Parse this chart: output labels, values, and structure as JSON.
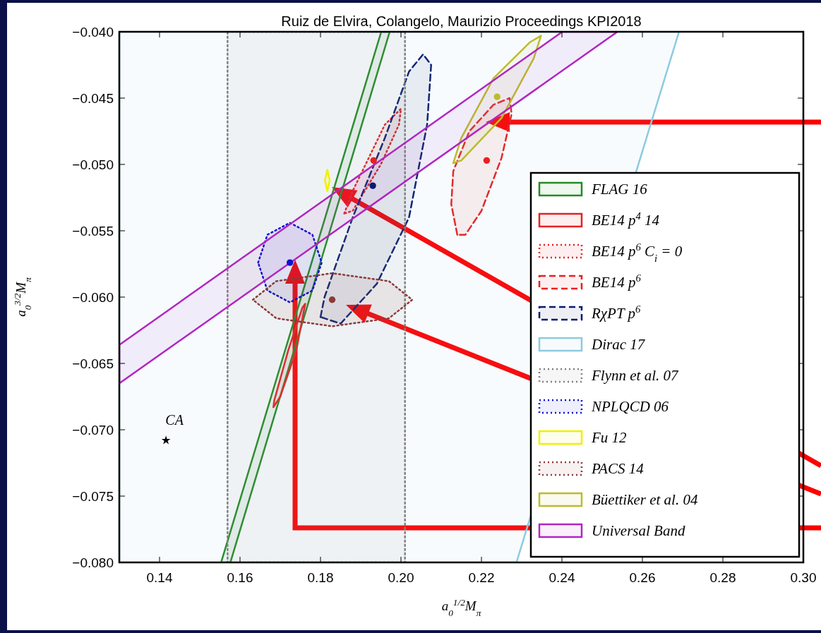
{
  "chart_data": {
    "type": "area",
    "title": "Ruiz de Elvira, Colangelo, Maurizio Proceedings KPI2018",
    "xlabel": "a$_{0}$$^{1/2}$M$_{π}$",
    "ylabel": "a$_{0}$$^{3/2}$M$_{π}$",
    "xlim": [
      0.13,
      0.3
    ],
    "ylim": [
      -0.08,
      -0.04
    ],
    "xticks": [
      0.14,
      0.16,
      0.18,
      {
        "value": 0.2,
        "label": "0.20"
      },
      0.22,
      0.24,
      0.26,
      0.28,
      {
        "value": 0.3,
        "label": "0.30"
      }
    ],
    "yticks": [
      {
        "value": -0.08,
        "label": "−0.080"
      },
      {
        "value": -0.075,
        "label": "−0.075"
      },
      {
        "value": -0.07,
        "label": "−0.070"
      },
      {
        "value": -0.065,
        "label": "−0.065"
      },
      {
        "value": -0.06,
        "label": "−0.060"
      },
      {
        "value": -0.055,
        "label": "−0.055"
      },
      {
        "value": -0.05,
        "label": "−0.050"
      },
      {
        "value": -0.045,
        "label": "−0.045"
      },
      {
        "value": -0.04,
        "label": "−0.040"
      }
    ],
    "legend": "bottom right",
    "marker": "none",
    "annotations": [
      {
        "text": "CA",
        "x": 0.1416,
        "y": -0.0708
      }
    ],
    "series": [
      {
        "name": "FLAG 16",
        "color": "#228b22",
        "line_style": "solid",
        "x": [
          0.1553,
          0.1951,
          0.1972,
          0.1576,
          0.1553
        ],
        "values": [
          -0.08,
          -0.04,
          -0.04,
          -0.08,
          -0.08
        ]
      },
      {
        "name": "BE14 p$^{4}$ 14",
        "color": "#e82020",
        "line_style": "solid",
        "x": [
          0.1683,
          0.17,
          0.174,
          0.1762,
          0.1755,
          0.172,
          0.1685,
          0.1683
        ],
        "values": [
          -0.0683,
          -0.0675,
          -0.064,
          -0.0605,
          -0.0608,
          -0.064,
          -0.0678,
          -0.0683
        ]
      },
      {
        "name": "BE14 p$^{6}$ C$_{i}$ = 0",
        "color": "#e82020",
        "line_style": "dotted",
        "x": [
          0.1859,
          0.188,
          0.196,
          0.2,
          0.1995,
          0.195,
          0.188,
          0.1859
        ],
        "values": [
          -0.0537,
          -0.052,
          -0.047,
          -0.0458,
          -0.047,
          -0.05,
          -0.0535,
          -0.0537
        ]
      },
      {
        "name": "BE14 p$^{6}$",
        "color": "#e82020",
        "line_style": "dashed",
        "x": [
          0.214,
          0.2125,
          0.213,
          0.217,
          0.223,
          0.227,
          0.2275,
          0.225,
          0.22,
          0.216,
          0.214
        ],
        "values": [
          -0.0553,
          -0.053,
          -0.0505,
          -0.0475,
          -0.0455,
          -0.045,
          -0.0462,
          -0.0495,
          -0.0535,
          -0.0553,
          -0.0553
        ]
      },
      {
        "name": "RχPT p$^{6}$",
        "color": "#0a1a6e",
        "line_style": "dashed",
        "x": [
          0.18,
          0.181,
          0.188,
          0.196,
          0.202,
          0.2055,
          0.2075,
          0.2065,
          0.202,
          0.194,
          0.185,
          0.18
        ],
        "values": [
          -0.0615,
          -0.06,
          -0.054,
          -0.048,
          -0.043,
          -0.0417,
          -0.0425,
          -0.047,
          -0.054,
          -0.059,
          -0.062,
          -0.0615
        ]
      },
      {
        "name": "Dirac 17",
        "color": "#8ccbe0",
        "line_style": "solid",
        "x": [
          0.13,
          0.2691,
          0.2287,
          0.13,
          0.13
        ],
        "values": [
          -0.04,
          -0.04,
          -0.08,
          -0.08,
          -0.04
        ]
      },
      {
        "name": "Flynn et al. 07",
        "color": "#808080",
        "line_style": "dotted",
        "x": [
          0.1569,
          0.201,
          0.201,
          0.1569,
          0.1569
        ],
        "values": [
          -0.04,
          -0.04,
          -0.08,
          -0.08,
          -0.04
        ]
      },
      {
        "name": "NPLQCD 06",
        "color": "#1010d0",
        "line_style": "dotted",
        "x": [
          0.1645,
          0.1668,
          0.1724,
          0.178,
          0.1803,
          0.178,
          0.1724,
          0.1668,
          0.1645
        ],
        "values": [
          -0.0574,
          -0.0553,
          -0.0544,
          -0.0553,
          -0.0574,
          -0.0595,
          -0.0604,
          -0.0595,
          -0.0574
        ]
      },
      {
        "name": "Fu 12",
        "color": "#f0f000",
        "line_style": "solid",
        "x": [
          0.1811,
          0.1817,
          0.1823,
          0.1817,
          0.1811
        ],
        "values": [
          -0.0512,
          -0.0504,
          -0.0512,
          -0.052,
          -0.0512
        ]
      },
      {
        "name": "PACS 14",
        "color": "#8b3a3a",
        "line_style": "dotted",
        "x": [
          0.1632,
          0.169,
          0.1829,
          0.197,
          0.2028,
          0.197,
          0.1829,
          0.169,
          0.1632
        ],
        "values": [
          -0.0602,
          -0.0588,
          -0.0582,
          -0.0588,
          -0.0602,
          -0.0616,
          -0.0622,
          -0.0616,
          -0.0602
        ]
      },
      {
        "name": "Büettiker et al. 04",
        "color": "#bcbc2c",
        "line_style": "solid",
        "x": [
          0.213,
          0.215,
          0.223,
          0.232,
          0.2348,
          0.233,
          0.225,
          0.215,
          0.213
        ],
        "values": [
          -0.0499,
          -0.048,
          -0.0435,
          -0.0408,
          -0.0403,
          -0.042,
          -0.0465,
          -0.0497,
          -0.0499
        ]
      },
      {
        "name": "Universal Band",
        "color": "#b026c0",
        "line_style": "solid",
        "x": [
          0.13,
          0.2401,
          0.2538,
          0.13,
          0.13
        ],
        "values": [
          -0.0636,
          -0.04,
          -0.04,
          -0.0665,
          -0.0636
        ]
      },
      {
        "type": "scatter",
        "marker": "circle",
        "colors": [
          "#1010d0",
          "#8b3a3a",
          "#e82020",
          "#0a1a6e",
          "#e82020",
          "#bcbc2c"
        ],
        "x": [
          0.1724,
          0.1829,
          0.1932,
          0.193,
          0.2213,
          0.2239
        ],
        "values": [
          -0.0574,
          -0.0602,
          -0.0497,
          -0.0516,
          -0.0497,
          -0.0449
        ]
      },
      {
        "type": "scatter",
        "marker": "star",
        "color": "#000000",
        "x": [
          0.1416
        ],
        "values": [
          -0.0708
        ]
      }
    ]
  }
}
